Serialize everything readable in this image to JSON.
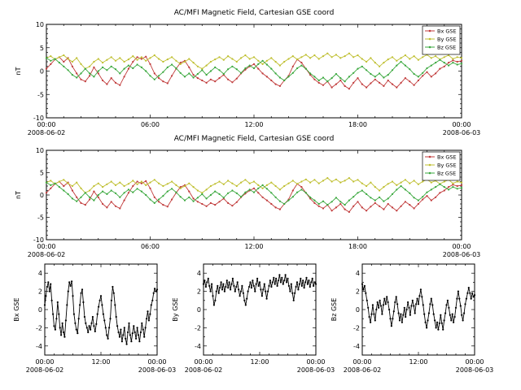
{
  "page": {
    "background": "#ffffff"
  },
  "chart_data": [
    {
      "id": "overview-1",
      "type": "line",
      "title": "AC/MFI Magnetic Field, Cartesian GSE coord",
      "ylabel": "nT",
      "ylim": [
        -10,
        10
      ],
      "yticks": [
        10,
        5,
        0,
        -5,
        -10
      ],
      "y_minor": 1,
      "x_end": 24,
      "x_minor": 1,
      "xtick_hours": [
        0,
        6,
        12,
        18,
        24
      ],
      "xtick_labels": [
        "00:00",
        "06:00",
        "12:00",
        "18:00",
        "00:00"
      ],
      "date_start": "2008-06-02",
      "date_end": "2008-06-03",
      "legend": {
        "position": "top-right",
        "entries": [
          "Bx GSE",
          "By GSE",
          "Bz GSE"
        ]
      },
      "series": [
        {
          "name": "Bx GSE",
          "color": "#c13b3b",
          "values": [
            0.5,
            1.5,
            2.5,
            3.0,
            2.0,
            2.8,
            1.0,
            -0.5,
            -1.8,
            -2.2,
            -1.0,
            0.8,
            -0.5,
            -2.0,
            -2.8,
            -1.5,
            -2.5,
            -3.0,
            -1.2,
            0.5,
            2.0,
            3.0,
            2.6,
            3.1,
            1.5,
            -0.5,
            -1.5,
            -2.2,
            -2.6,
            -1.0,
            0.5,
            1.8,
            2.2,
            0.8,
            -0.8,
            -1.5,
            -2.0,
            -2.5,
            -1.8,
            -2.2,
            -1.5,
            -0.8,
            -1.8,
            -2.4,
            -1.6,
            -0.5,
            0.3,
            1.0,
            1.5,
            0.5,
            -0.5,
            -1.2,
            -2.0,
            -2.8,
            -3.2,
            -2.0,
            -1.0,
            1.0,
            2.5,
            1.8,
            0.5,
            -0.8,
            -1.8,
            -2.5,
            -3.0,
            -2.2,
            -3.5,
            -2.8,
            -2.0,
            -3.2,
            -3.8,
            -2.5,
            -1.5,
            -2.8,
            -3.5,
            -2.6,
            -1.8,
            -2.5,
            -3.2,
            -2.0,
            -2.8,
            -3.5,
            -2.5,
            -1.5,
            -2.2,
            -3.0,
            -2.0,
            -1.0,
            -0.2,
            -1.2,
            -0.5,
            0.5,
            1.0,
            1.8,
            2.3,
            2.0,
            2.2
          ]
        },
        {
          "name": "By GSE",
          "color": "#bfbf30",
          "values": [
            2.8,
            3.2,
            2.5,
            3.0,
            3.4,
            2.6,
            2.0,
            2.8,
            1.5,
            0.5,
            1.0,
            2.0,
            2.6,
            1.8,
            2.4,
            3.0,
            2.2,
            2.8,
            2.0,
            2.5,
            3.2,
            2.4,
            3.0,
            2.2,
            2.8,
            3.4,
            2.6,
            2.0,
            2.5,
            3.0,
            2.2,
            1.5,
            2.0,
            2.6,
            1.8,
            1.0,
            0.5,
            1.2,
            2.0,
            2.5,
            3.0,
            2.4,
            3.2,
            2.6,
            2.0,
            2.8,
            3.4,
            2.6,
            3.0,
            2.2,
            1.5,
            2.2,
            2.8,
            2.0,
            1.2,
            2.0,
            2.6,
            3.2,
            2.5,
            3.0,
            3.5,
            2.8,
            3.4,
            2.6,
            3.2,
            3.8,
            3.0,
            3.5,
            2.8,
            3.2,
            3.8,
            3.0,
            3.4,
            2.6,
            2.0,
            2.8,
            1.8,
            1.0,
            1.8,
            2.5,
            3.0,
            2.2,
            2.8,
            3.4,
            2.6,
            3.2,
            2.4,
            3.0,
            3.5,
            2.8,
            3.2,
            2.5,
            3.0,
            3.4,
            2.6,
            3.0,
            2.8
          ]
        },
        {
          "name": "Bz GSE",
          "color": "#3aa83e",
          "values": [
            2.8,
            2.2,
            2.6,
            1.8,
            1.0,
            0.2,
            -0.8,
            -1.4,
            -0.5,
            0.5,
            -0.5,
            -1.2,
            0.0,
            0.8,
            0.2,
            1.0,
            0.4,
            -0.5,
            0.5,
            1.2,
            0.6,
            1.4,
            0.8,
            0.0,
            -1.0,
            -1.8,
            -1.0,
            -0.2,
            0.8,
            1.4,
            0.6,
            -0.4,
            -1.2,
            -0.5,
            -1.4,
            -0.6,
            0.2,
            -0.8,
            0.0,
            0.8,
            0.2,
            -0.6,
            0.4,
            1.0,
            0.4,
            -0.4,
            0.6,
            1.2,
            0.6,
            1.5,
            2.2,
            1.4,
            0.5,
            -0.5,
            -1.4,
            -2.0,
            -1.2,
            -0.4,
            0.6,
            1.2,
            0.5,
            -0.5,
            -1.2,
            -2.0,
            -1.4,
            -2.2,
            -1.5,
            -0.6,
            -1.5,
            -2.2,
            -1.2,
            -0.4,
            0.5,
            1.0,
            0.2,
            -0.6,
            -1.2,
            -0.5,
            -1.4,
            -0.8,
            0.2,
            1.2,
            2.0,
            1.2,
            0.4,
            -0.6,
            -1.2,
            -0.4,
            0.6,
            1.2,
            1.8,
            2.4,
            1.8,
            1.2,
            1.8,
            1.4,
            1.6
          ]
        }
      ]
    },
    {
      "id": "overview-2",
      "type": "line",
      "title": "AC/MFI Magnetic Field, Cartesian GSE coord",
      "ylabel": "nT",
      "ylim": [
        -10,
        10
      ],
      "yticks": [
        10,
        5,
        0,
        -5,
        -10
      ],
      "y_minor": 1,
      "x_end": 24,
      "x_minor": 1,
      "xtick_hours": [
        0,
        6,
        12,
        18,
        24
      ],
      "xtick_labels": [
        "00:00",
        "06:00",
        "12:00",
        "18:00",
        "00:00"
      ],
      "date_start": "2008-06-02",
      "date_end": "2008-06-03",
      "legend": {
        "position": "top-right",
        "entries": [
          "Bx GSE",
          "By GSE",
          "Bz GSE"
        ]
      },
      "series": [
        {
          "name": "Bx GSE",
          "color": "#c13b3b",
          "ref": [
            0,
            0
          ]
        },
        {
          "name": "By GSE",
          "color": "#bfbf30",
          "ref": [
            0,
            1
          ]
        },
        {
          "name": "Bz GSE",
          "color": "#3aa83e",
          "ref": [
            0,
            2
          ]
        }
      ]
    },
    {
      "id": "bx-detail",
      "type": "line",
      "title": "",
      "ylabel": "Bx GSE",
      "ylim": [
        -5,
        5
      ],
      "yticks": [
        4,
        2,
        0,
        -2,
        -4
      ],
      "y_minor": 1,
      "x_end": 24,
      "x_minor": 2,
      "xtick_hours": [
        0,
        12,
        24
      ],
      "xtick_labels": [
        "00:00",
        "12:00",
        "00:00"
      ],
      "date_start": "2008-06-02",
      "date_end": "2008-06-03",
      "legend": null,
      "series": [
        {
          "name": "Bx GSE",
          "color": "#000000",
          "ref": [
            0,
            0
          ]
        }
      ]
    },
    {
      "id": "by-detail",
      "type": "line",
      "title": "",
      "ylabel": "By GSE",
      "ylim": [
        -5,
        5
      ],
      "yticks": [
        4,
        2,
        0,
        -2,
        -4
      ],
      "y_minor": 1,
      "x_end": 24,
      "x_minor": 2,
      "xtick_hours": [
        0,
        12,
        24
      ],
      "xtick_labels": [
        "00:00",
        "12:00",
        "00:00"
      ],
      "date_start": "2008-06-02",
      "date_end": "2008-06-03",
      "legend": null,
      "series": [
        {
          "name": "By GSE",
          "color": "#000000",
          "ref": [
            0,
            1
          ]
        }
      ]
    },
    {
      "id": "bz-detail",
      "type": "line",
      "title": "",
      "ylabel": "Bz GSE",
      "ylim": [
        -5,
        5
      ],
      "yticks": [
        4,
        2,
        0,
        -2,
        -4
      ],
      "y_minor": 1,
      "x_end": 24,
      "x_minor": 2,
      "xtick_hours": [
        0,
        12,
        24
      ],
      "xtick_labels": [
        "00:00",
        "12:00",
        "00:00"
      ],
      "date_start": "2008-06-02",
      "date_end": "2008-06-03",
      "legend": null,
      "series": [
        {
          "name": "Bz GSE",
          "color": "#000000",
          "ref": [
            0,
            2
          ]
        }
      ]
    }
  ]
}
